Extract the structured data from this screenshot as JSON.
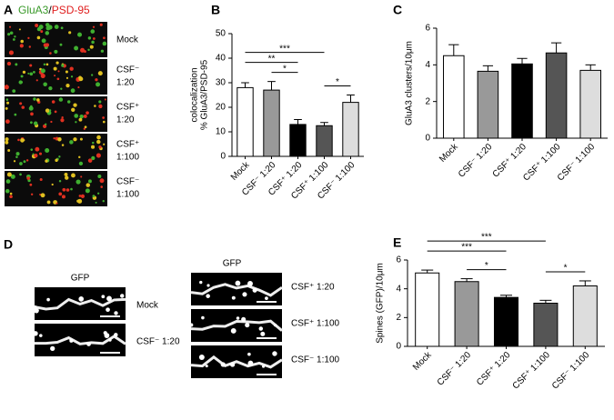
{
  "panel_labels": [
    "A",
    "B",
    "C",
    "D",
    "E"
  ],
  "panel_a": {
    "title": [
      "GluA3",
      "/",
      "PSD-95"
    ],
    "rows": [
      [
        "Mock"
      ],
      [
        "CSF⁻",
        "1:20"
      ],
      [
        "CSF⁺",
        "1:20"
      ],
      [
        "CSF⁺",
        "1:100"
      ],
      [
        "CSF⁻",
        "1:100"
      ]
    ]
  },
  "panel_d": {
    "left_header": "GFP",
    "right_header": "GFP",
    "left_rows": [
      "Mock",
      "CSF⁻ 1:20"
    ],
    "right_rows": [
      "CSF⁺ 1:20",
      "CSF⁺ 1:100",
      "CSF⁻ 1:100"
    ]
  },
  "chart_data": [
    {
      "type": "bar",
      "ylabel": [
        "% GluA3/PSD-95",
        "colocalization"
      ],
      "categories": [
        "Mock",
        "CSF⁻ 1:20",
        "CSF⁺ 1:20",
        "CSF⁺ 1:100",
        "CSF⁻ 1:100"
      ],
      "series": [
        {
          "values": [
            28,
            27,
            13,
            12.5,
            22
          ],
          "errors": [
            2,
            3.5,
            2,
            1.3,
            3
          ]
        }
      ],
      "colors": [
        "#ffffff",
        "#999999",
        "#000000",
        "#555555",
        "#dddddd"
      ],
      "ylim": [
        0,
        50
      ],
      "yticks": [
        0,
        10,
        20,
        30,
        40,
        50
      ],
      "annotations": [
        {
          "text": "***",
          "from": 0,
          "to": 3
        },
        {
          "text": "**",
          "from": 0,
          "to": 2
        },
        {
          "text": "*",
          "from": 1,
          "to": 2
        },
        {
          "text": "*",
          "from": 3,
          "to": 4
        }
      ]
    },
    {
      "type": "bar",
      "ylabel": [
        "GluA3 clusters/10μm"
      ],
      "categories": [
        "Mock",
        "CSF⁻ 1:20",
        "CSF⁺ 1:20",
        "CSF⁺ 1:100",
        "CSF⁻ 1:100"
      ],
      "series": [
        {
          "values": [
            4.5,
            3.65,
            4.05,
            4.65,
            3.7
          ],
          "errors": [
            0.6,
            0.3,
            0.3,
            0.55,
            0.3
          ]
        }
      ],
      "colors": [
        "#ffffff",
        "#999999",
        "#000000",
        "#555555",
        "#dddddd"
      ],
      "ylim": [
        0,
        6
      ],
      "yticks": [
        0,
        2,
        4,
        6
      ],
      "annotations": []
    },
    {
      "type": "bar",
      "ylabel": [
        "Spines (GFP)/10μm"
      ],
      "categories": [
        "Mock",
        "CSF⁻ 1:20",
        "CSF⁺ 1:20",
        "CSF⁺ 1:100",
        "CSF⁻ 1:100"
      ],
      "series": [
        {
          "values": [
            5.1,
            4.5,
            3.4,
            3.0,
            4.2
          ],
          "errors": [
            0.2,
            0.2,
            0.15,
            0.2,
            0.35
          ]
        }
      ],
      "colors": [
        "#ffffff",
        "#999999",
        "#000000",
        "#555555",
        "#dddddd"
      ],
      "ylim": [
        0,
        6
      ],
      "yticks": [
        0,
        2,
        4,
        6
      ],
      "annotations": [
        {
          "text": "***",
          "from": 0,
          "to": 3
        },
        {
          "text": "***",
          "from": 0,
          "to": 2
        },
        {
          "text": "*",
          "from": 1,
          "to": 2
        },
        {
          "text": "*",
          "from": 3,
          "to": 4
        }
      ]
    }
  ]
}
